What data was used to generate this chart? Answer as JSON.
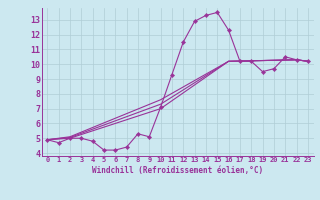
{
  "background_color": "#cce8f0",
  "plot_bg_color": "#cce8f0",
  "grid_color": "#b0cdd6",
  "line_color": "#993399",
  "marker_color": "#993399",
  "xlabel": "Windchill (Refroidissement éolien,°C)",
  "xlim": [
    -0.5,
    23.5
  ],
  "ylim": [
    3.8,
    13.8
  ],
  "yticks": [
    4,
    5,
    6,
    7,
    8,
    9,
    10,
    11,
    12,
    13
  ],
  "xticks": [
    0,
    1,
    2,
    3,
    4,
    5,
    6,
    7,
    8,
    9,
    10,
    11,
    12,
    13,
    14,
    15,
    16,
    17,
    18,
    19,
    20,
    21,
    22,
    23
  ],
  "lines": [
    {
      "x": [
        0,
        1,
        2,
        3,
        4,
        5,
        6,
        7,
        8,
        9,
        10,
        11,
        12,
        13,
        14,
        15,
        16,
        17,
        18,
        19,
        20,
        21,
        22,
        23
      ],
      "y": [
        4.9,
        4.7,
        5.0,
        5.0,
        4.8,
        4.2,
        4.2,
        4.4,
        5.3,
        5.1,
        7.1,
        9.3,
        11.5,
        12.9,
        13.3,
        13.5,
        12.3,
        10.2,
        10.2,
        9.5,
        9.7,
        10.5,
        10.3,
        10.2
      ],
      "marker": true
    },
    {
      "x": [
        0,
        2,
        10,
        16,
        22,
        23
      ],
      "y": [
        4.9,
        5.0,
        7.0,
        10.2,
        10.3,
        10.2
      ],
      "marker": false
    },
    {
      "x": [
        0,
        2,
        10,
        16,
        22,
        23
      ],
      "y": [
        4.9,
        5.05,
        7.3,
        10.2,
        10.3,
        10.2
      ],
      "marker": false
    },
    {
      "x": [
        0,
        2,
        10,
        16,
        22,
        23
      ],
      "y": [
        4.9,
        5.1,
        7.6,
        10.2,
        10.3,
        10.2
      ],
      "marker": false
    }
  ]
}
